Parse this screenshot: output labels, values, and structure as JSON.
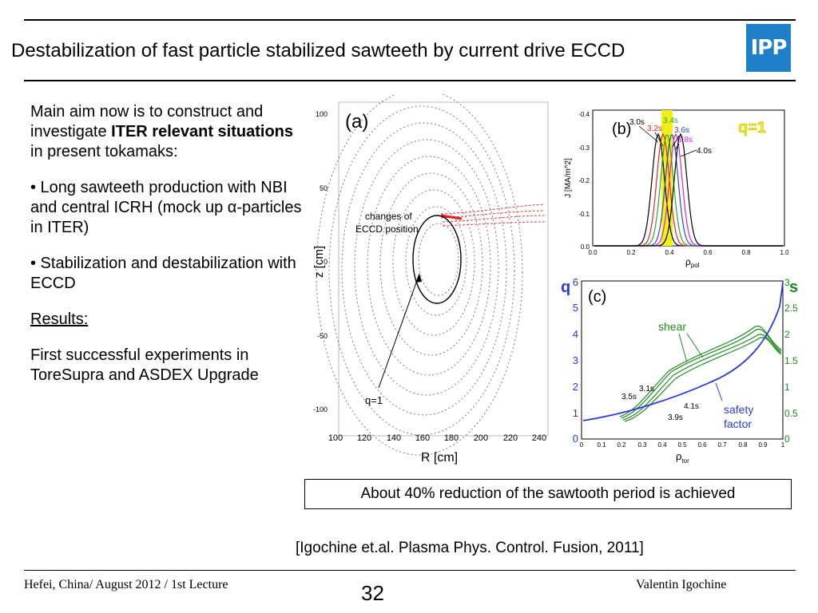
{
  "header": {
    "title": "Destabilization of fast particle stabilized sawteeth by current drive ECCD",
    "logo_text": "IPP",
    "logo_color": "#1f7fc8"
  },
  "body": {
    "p1_a": "Main aim now is to construct and investigate ",
    "p1_bold": "ITER relevant situations",
    "p1_b": " in present tokamaks:",
    "bullet1": "• Long sawteeth production with NBI and central ICRH (mock up α-particles in ITER)",
    "bullet2": "• Stabilization and destabilization with ECCD",
    "results_heading": "Results:",
    "results_text": "First successful experiments in ToreSupra and ASDEX Upgrade"
  },
  "figure_a": {
    "panel_label": "(a)",
    "x_label": "R [cm]",
    "y_label": "z [cm]",
    "x_ticks": [
      "100",
      "120",
      "140",
      "160",
      "180",
      "200",
      "220",
      "240"
    ],
    "y_ticks": [
      "100",
      "50",
      "0",
      "-50",
      "-100"
    ],
    "annotation_eccd": "changes of ECCD position",
    "annotation_eccd_line1": "changes of",
    "annotation_eccd_line2": "ECCD position",
    "annotation_q1": "q=1"
  },
  "figure_b": {
    "panel_label": "(b)",
    "y_label": "J [MA/m^2]",
    "x_label": "ρ",
    "x_label_sub": "pol",
    "q_label": "q=1",
    "x_ticks": [
      "0.0",
      "0.2",
      "0.4",
      "0.6",
      "0.8",
      "1.0"
    ],
    "y_ticks": [
      "-0.4",
      "-0.3",
      "-0.2",
      "-0.1",
      "0.0"
    ],
    "times": [
      {
        "label": "3.0s",
        "color": "#000000"
      },
      {
        "label": "3.2s",
        "color": "#e3262b"
      },
      {
        "label": "3.4s",
        "color": "#2fa82f"
      },
      {
        "label": "3.6s",
        "color": "#2b49c9"
      },
      {
        "label": "3.8s",
        "color": "#d926d9"
      },
      {
        "label": "4.0s",
        "color": "#000000"
      }
    ],
    "highlight_color": "#f2ee17"
  },
  "figure_c": {
    "panel_label": "(c)",
    "left_axis": "q",
    "right_axis": "s",
    "x_label": "ρ",
    "x_label_sub": "tor",
    "left_ticks": [
      "0",
      "1",
      "2",
      "3",
      "4",
      "5",
      "6"
    ],
    "right_ticks": [
      "0",
      "0.5",
      "1",
      "1.5",
      "2",
      "2.5",
      "3"
    ],
    "x_ticks": [
      "0",
      "0.1",
      "0.2",
      "0.3",
      "0.4",
      "0.5",
      "0.6",
      "0.7",
      "0.8",
      "0.9",
      "1"
    ],
    "shear_label": "shear",
    "safety_label_line1": "safety",
    "safety_label_line2": "factor",
    "time_labels": [
      "3.1s",
      "3.5s",
      "4.1s",
      "3.9s"
    ],
    "q_color": "#2b3bd6",
    "s_color": "#1f8a1f"
  },
  "result_box": "About 40% reduction of the sawtooth period is achieved",
  "citation": "[Igochine et.al. Plasma Phys. Control. Fusion, 2011]",
  "footer": {
    "left": "Hefei, China/ August 2012 / 1st Lecture",
    "page_number": "32",
    "right": "Valentin Igochine"
  }
}
